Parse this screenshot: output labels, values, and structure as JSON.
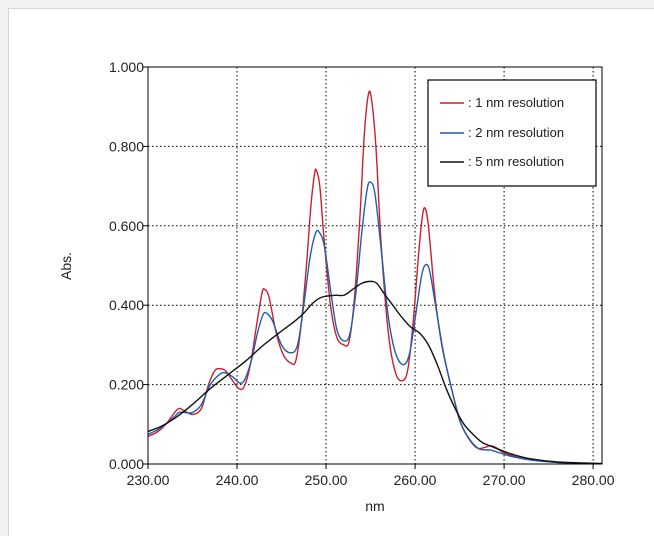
{
  "chart_data": {
    "type": "line",
    "title": "",
    "xlabel": "nm",
    "ylabel": "Abs.",
    "xlim": [
      230,
      281
    ],
    "ylim": [
      0,
      1
    ],
    "grid": true,
    "grid_style": "dotted",
    "legend_position": "top-right",
    "x_ticks": [
      "230.00",
      "240.00",
      "250.00",
      "260.00",
      "270.00",
      "280.00"
    ],
    "y_ticks": [
      "0.000",
      "0.200",
      "0.400",
      "0.600",
      "0.800",
      "1.000"
    ],
    "series": [
      {
        "name": ": 1 nm resolution",
        "color": "#cc1f2e",
        "points": [
          [
            230.0,
            0.07
          ],
          [
            231.0,
            0.08
          ],
          [
            232.0,
            0.1
          ],
          [
            233.0,
            0.13
          ],
          [
            233.5,
            0.14
          ],
          [
            234.0,
            0.135
          ],
          [
            235.0,
            0.125
          ],
          [
            236.0,
            0.14
          ],
          [
            236.8,
            0.2
          ],
          [
            237.5,
            0.235
          ],
          [
            238.0,
            0.24
          ],
          [
            238.7,
            0.235
          ],
          [
            239.5,
            0.21
          ],
          [
            240.2,
            0.19
          ],
          [
            240.8,
            0.195
          ],
          [
            241.5,
            0.25
          ],
          [
            242.2,
            0.35
          ],
          [
            242.8,
            0.43
          ],
          [
            243.1,
            0.44
          ],
          [
            243.6,
            0.42
          ],
          [
            244.4,
            0.33
          ],
          [
            245.2,
            0.275
          ],
          [
            246.0,
            0.255
          ],
          [
            246.6,
            0.26
          ],
          [
            247.2,
            0.35
          ],
          [
            247.8,
            0.5
          ],
          [
            248.3,
            0.65
          ],
          [
            248.7,
            0.73
          ],
          [
            248.9,
            0.74
          ],
          [
            249.3,
            0.7
          ],
          [
            249.8,
            0.56
          ],
          [
            250.5,
            0.4
          ],
          [
            251.2,
            0.32
          ],
          [
            252.0,
            0.3
          ],
          [
            252.6,
            0.31
          ],
          [
            253.2,
            0.42
          ],
          [
            253.8,
            0.62
          ],
          [
            254.3,
            0.83
          ],
          [
            254.75,
            0.93
          ],
          [
            255.1,
            0.92
          ],
          [
            255.6,
            0.8
          ],
          [
            256.2,
            0.55
          ],
          [
            257.0,
            0.33
          ],
          [
            257.8,
            0.23
          ],
          [
            258.6,
            0.21
          ],
          [
            259.2,
            0.24
          ],
          [
            259.8,
            0.36
          ],
          [
            260.4,
            0.53
          ],
          [
            260.8,
            0.62
          ],
          [
            261.1,
            0.645
          ],
          [
            261.5,
            0.6
          ],
          [
            262.2,
            0.43
          ],
          [
            263.0,
            0.3
          ],
          [
            264.0,
            0.2
          ],
          [
            265.0,
            0.11
          ],
          [
            266.0,
            0.065
          ],
          [
            267.0,
            0.04
          ],
          [
            268.0,
            0.043
          ],
          [
            268.5,
            0.046
          ],
          [
            269.2,
            0.04
          ],
          [
            270.0,
            0.028
          ],
          [
            272.0,
            0.015
          ],
          [
            275.0,
            0.006
          ],
          [
            278.0,
            0.002
          ],
          [
            281.0,
            0.001
          ]
        ]
      },
      {
        "name": ": 2 nm resolution",
        "color": "#1f5fad",
        "points": [
          [
            230.0,
            0.075
          ],
          [
            231.0,
            0.085
          ],
          [
            232.0,
            0.1
          ],
          [
            233.0,
            0.12
          ],
          [
            233.5,
            0.13
          ],
          [
            234.0,
            0.13
          ],
          [
            235.0,
            0.13
          ],
          [
            236.0,
            0.15
          ],
          [
            237.0,
            0.2
          ],
          [
            238.0,
            0.225
          ],
          [
            238.6,
            0.23
          ],
          [
            239.5,
            0.22
          ],
          [
            240.2,
            0.205
          ],
          [
            240.8,
            0.21
          ],
          [
            241.6,
            0.26
          ],
          [
            242.3,
            0.33
          ],
          [
            242.9,
            0.375
          ],
          [
            243.3,
            0.38
          ],
          [
            244.0,
            0.36
          ],
          [
            245.0,
            0.3
          ],
          [
            246.0,
            0.28
          ],
          [
            246.8,
            0.3
          ],
          [
            247.5,
            0.4
          ],
          [
            248.2,
            0.52
          ],
          [
            248.8,
            0.58
          ],
          [
            249.2,
            0.585
          ],
          [
            249.8,
            0.55
          ],
          [
            250.5,
            0.44
          ],
          [
            251.2,
            0.34
          ],
          [
            252.0,
            0.31
          ],
          [
            252.7,
            0.33
          ],
          [
            253.4,
            0.44
          ],
          [
            254.0,
            0.58
          ],
          [
            254.6,
            0.69
          ],
          [
            255.0,
            0.71
          ],
          [
            255.5,
            0.68
          ],
          [
            256.2,
            0.54
          ],
          [
            257.0,
            0.37
          ],
          [
            257.8,
            0.28
          ],
          [
            258.7,
            0.25
          ],
          [
            259.4,
            0.28
          ],
          [
            260.1,
            0.38
          ],
          [
            260.7,
            0.47
          ],
          [
            261.1,
            0.5
          ],
          [
            261.6,
            0.49
          ],
          [
            262.3,
            0.4
          ],
          [
            263.2,
            0.28
          ],
          [
            264.2,
            0.18
          ],
          [
            265.2,
            0.1
          ],
          [
            266.2,
            0.06
          ],
          [
            267.2,
            0.038
          ],
          [
            268.5,
            0.035
          ],
          [
            269.5,
            0.028
          ],
          [
            271.0,
            0.018
          ],
          [
            273.0,
            0.01
          ],
          [
            276.0,
            0.004
          ],
          [
            281.0,
            0.001
          ]
        ]
      },
      {
        "name": ": 5 nm resolution",
        "color": "#111111",
        "points": [
          [
            230.0,
            0.082
          ],
          [
            231.5,
            0.095
          ],
          [
            233.0,
            0.115
          ],
          [
            235.0,
            0.15
          ],
          [
            237.0,
            0.19
          ],
          [
            239.0,
            0.225
          ],
          [
            241.0,
            0.26
          ],
          [
            243.0,
            0.3
          ],
          [
            245.0,
            0.335
          ],
          [
            246.5,
            0.36
          ],
          [
            247.5,
            0.38
          ],
          [
            248.5,
            0.405
          ],
          [
            249.5,
            0.42
          ],
          [
            251.0,
            0.425
          ],
          [
            252.0,
            0.425
          ],
          [
            253.0,
            0.44
          ],
          [
            254.0,
            0.455
          ],
          [
            255.0,
            0.46
          ],
          [
            255.7,
            0.455
          ],
          [
            256.5,
            0.43
          ],
          [
            257.5,
            0.4
          ],
          [
            258.5,
            0.37
          ],
          [
            259.5,
            0.345
          ],
          [
            260.5,
            0.33
          ],
          [
            261.5,
            0.3
          ],
          [
            262.5,
            0.25
          ],
          [
            263.5,
            0.19
          ],
          [
            264.5,
            0.14
          ],
          [
            265.5,
            0.1
          ],
          [
            266.5,
            0.075
          ],
          [
            267.5,
            0.055
          ],
          [
            268.5,
            0.045
          ],
          [
            269.5,
            0.036
          ],
          [
            271.0,
            0.024
          ],
          [
            273.0,
            0.013
          ],
          [
            276.0,
            0.005
          ],
          [
            281.0,
            0.001
          ]
        ]
      }
    ]
  }
}
